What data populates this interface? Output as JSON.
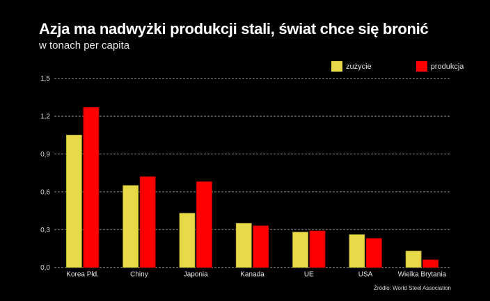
{
  "colors": {
    "background": "#000000",
    "zuzycie": "#e8d948",
    "produkcja": "#ff0000",
    "grid": "#8a8a8a"
  },
  "chart_data": {
    "type": "bar",
    "title": "Azja ma nadwyżki produkcji stali, świat chce się bronić",
    "subtitle": "w tonach per capita",
    "xlabel": "",
    "ylabel": "",
    "ylim": [
      0,
      1.5
    ],
    "yticks": [
      0,
      0.3,
      0.6,
      0.9,
      1.2,
      1.5
    ],
    "ytick_labels": [
      "0,0",
      "0,3",
      "0,6",
      "0,9",
      "1,2",
      "1,5"
    ],
    "grid": true,
    "legend_position": "top-right",
    "categories": [
      "Korea Płd.",
      "Chiny",
      "Japonia",
      "Kanada",
      "UE",
      "USA",
      "Wielka Brytania"
    ],
    "series": [
      {
        "name": "zużycie",
        "color": "#e8d948",
        "values": [
          1.05,
          0.65,
          0.43,
          0.35,
          0.28,
          0.26,
          0.13
        ]
      },
      {
        "name": "produkcja",
        "color": "#ff0000",
        "values": [
          1.27,
          0.72,
          0.68,
          0.33,
          0.29,
          0.23,
          0.06
        ]
      }
    ],
    "source": "Źródło: World Steel Association"
  }
}
